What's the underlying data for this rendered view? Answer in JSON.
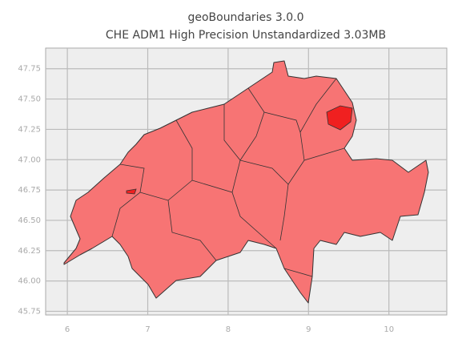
{
  "chart_data": {
    "type": "map",
    "title": "geoBoundaries 3.0.0",
    "subtitle": "CHE ADM1 High Precision Unstandardized 3.03MB",
    "xlim": [
      5.73,
      10.72
    ],
    "ylim": [
      45.72,
      47.92
    ],
    "xticks": [
      6,
      7,
      8,
      9,
      10
    ],
    "yticks": [
      {
        "value": 45.75,
        "label": "45.75"
      },
      {
        "value": 46,
        "label": "46.00"
      },
      {
        "value": 46.25,
        "label": "46.25"
      },
      {
        "value": 46.5,
        "label": "46.50"
      },
      {
        "value": 46.75,
        "label": "46.75"
      },
      {
        "value": 47,
        "label": "47.00"
      },
      {
        "value": 47.25,
        "label": "47.25"
      },
      {
        "value": 47.5,
        "label": "47.50"
      },
      {
        "value": 47.75,
        "label": "47.75"
      }
    ],
    "grid": true,
    "color": "#f77474"
  }
}
